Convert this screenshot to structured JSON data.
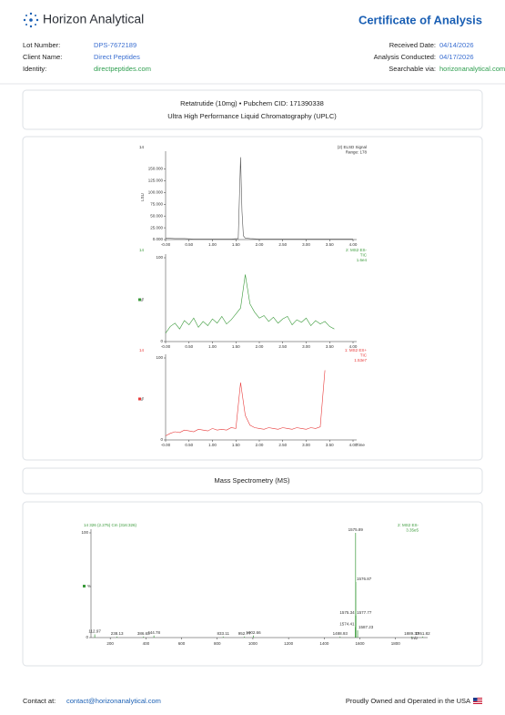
{
  "header": {
    "brand": "Horizon Analytical",
    "title": "Certificate of Analysis"
  },
  "details": {
    "left": [
      {
        "label": "Lot Number:",
        "value": "DPS-7672189"
      },
      {
        "label": "Client Name:",
        "value": "Direct Peptides"
      },
      {
        "label": "Identity:",
        "value": "directpeptides.com"
      }
    ],
    "right": [
      {
        "label": "Received Date:",
        "value": "04/14/2026"
      },
      {
        "label": "Analysis Conducted:",
        "value": "04/17/2026"
      },
      {
        "label": "Searchable via:",
        "value": "horizonanalytical.com"
      }
    ]
  },
  "compound": {
    "name": "Retatrutide (10mg) • Pubchem CID: 171390338",
    "method": "Ultra High Performance Liquid Chromatography (UPLC)"
  },
  "uplc": {
    "xlim": [
      0,
      4
    ],
    "xlabel": "Time",
    "xticks": [
      {
        "value": 0,
        "label": "-0.00"
      },
      {
        "value": 0.5,
        "label": "0.50"
      },
      {
        "value": 1,
        "label": "1.00"
      },
      {
        "value": 1.5,
        "label": "1.50"
      },
      {
        "value": 2,
        "label": "2.00"
      },
      {
        "value": 2.5,
        "label": "2.50"
      },
      {
        "value": 3,
        "label": "3.00"
      },
      {
        "value": 3.5,
        "label": "3.50"
      },
      {
        "value": 4,
        "label": "4.00"
      }
    ],
    "panels": [
      {
        "id": "14",
        "ylabel": "LSU",
        "legend": [
          "(2) ELSD Signal",
          "Range: 178"
        ],
        "color": "#555555",
        "ylim": [
          0,
          180
        ],
        "yticks": [
          {
            "value": 0,
            "label": "0.000"
          },
          {
            "value": 25,
            "label": "25.000"
          },
          {
            "value": 50,
            "label": "50.000"
          },
          {
            "value": 75,
            "label": "75.000"
          },
          {
            "value": 100,
            "label": "100.000"
          },
          {
            "value": 125,
            "label": "125.000"
          },
          {
            "value": 150,
            "label": "150.000"
          }
        ],
        "x": [
          0,
          0.2,
          0.4,
          0.6,
          0.8,
          1.0,
          1.2,
          1.4,
          1.55,
          1.6,
          1.63,
          1.66,
          1.7,
          1.8,
          2.0,
          2.4,
          2.8,
          3.2,
          3.6,
          4.0
        ],
        "values": [
          3,
          2,
          2,
          1,
          1,
          1,
          1,
          1,
          2,
          175,
          60,
          8,
          3,
          2,
          1,
          1,
          1,
          1,
          1,
          1
        ]
      },
      {
        "id": "14",
        "ylabel": "%",
        "legend": [
          "2: MS2 ES-",
          "TIC",
          "1.6e4"
        ],
        "color": "#3a9a3a",
        "ylim": [
          0,
          100
        ],
        "yticks": [
          0,
          100
        ],
        "x": [
          0,
          0.1,
          0.2,
          0.3,
          0.4,
          0.5,
          0.6,
          0.7,
          0.8,
          0.9,
          1.0,
          1.1,
          1.2,
          1.3,
          1.4,
          1.5,
          1.6,
          1.7,
          1.8,
          1.9,
          2.0,
          2.1,
          2.2,
          2.3,
          2.4,
          2.5,
          2.6,
          2.7,
          2.8,
          2.9,
          3.0,
          3.1,
          3.2,
          3.3,
          3.4,
          3.5,
          3.6
        ],
        "values": [
          10,
          18,
          22,
          15,
          25,
          20,
          28,
          17,
          24,
          19,
          27,
          22,
          30,
          21,
          26,
          33,
          40,
          80,
          45,
          35,
          28,
          31,
          24,
          29,
          22,
          27,
          30,
          20,
          26,
          23,
          28,
          19,
          25,
          21,
          24,
          18,
          15
        ]
      },
      {
        "id": "14",
        "ylabel": "%",
        "legend": [
          "1: MS2 ES+",
          "TIC",
          "1.53e7"
        ],
        "color": "#e83a3a",
        "ylim": [
          0,
          100
        ],
        "yticks": [
          0,
          100
        ],
        "x": [
          0,
          0.1,
          0.2,
          0.3,
          0.4,
          0.5,
          0.6,
          0.7,
          0.8,
          0.9,
          1.0,
          1.1,
          1.2,
          1.3,
          1.4,
          1.5,
          1.6,
          1.7,
          1.8,
          1.9,
          2.0,
          2.1,
          2.2,
          2.3,
          2.4,
          2.5,
          2.6,
          2.7,
          2.8,
          2.9,
          3.0,
          3.1,
          3.2,
          3.3,
          3.4
        ],
        "values": [
          5,
          8,
          10,
          9,
          12,
          11,
          10,
          13,
          12,
          11,
          14,
          12,
          13,
          12,
          15,
          14,
          70,
          30,
          18,
          15,
          14,
          13,
          15,
          14,
          13,
          15,
          14,
          13,
          15,
          14,
          13,
          15,
          14,
          16,
          85
        ]
      }
    ]
  },
  "ms": {
    "title": "Mass Spectrometry (MS)",
    "header": "14 326 (2.275) Cm (316:326)",
    "legend": [
      "2: MS2 ES-",
      "3.35e5"
    ],
    "ylabel": "%",
    "xlabel": "m/z",
    "color": "#3a9a3a",
    "xlim": [
      92,
      1980
    ],
    "ylim": [
      0,
      100
    ],
    "xticks": [
      200,
      400,
      600,
      800,
      1000,
      1200,
      1400,
      1600,
      1800
    ],
    "yticks": [
      0,
      100
    ],
    "peaks": [
      {
        "mz": 112.97,
        "intensity": 3
      },
      {
        "mz": 238.13,
        "intensity": 1
      },
      {
        "mz": 386.63,
        "intensity": 1
      },
      {
        "mz": 444.78,
        "intensity": 2
      },
      {
        "mz": 833.11,
        "intensity": 1
      },
      {
        "mz": 952.77,
        "intensity": 1
      },
      {
        "mz": 1002.66,
        "intensity": 2
      },
      {
        "mz": 1488.93,
        "intensity": 1
      },
      {
        "mz": 1574.41,
        "intensity": 10
      },
      {
        "mz": 1575.34,
        "intensity": 21
      },
      {
        "mz": 1575.89,
        "intensity": 100
      },
      {
        "mz": 1576.87,
        "intensity": 53
      },
      {
        "mz": 1577.77,
        "intensity": 21
      },
      {
        "mz": 1587.23,
        "intensity": 7
      },
      {
        "mz": 1889.37,
        "intensity": 1
      },
      {
        "mz": 1951.82,
        "intensity": 1
      }
    ]
  },
  "footer": {
    "contact_label": "Contact at:",
    "email": "contact@horizonanalytical.com",
    "tagline": "Proudly Owned and Operated in the USA"
  }
}
